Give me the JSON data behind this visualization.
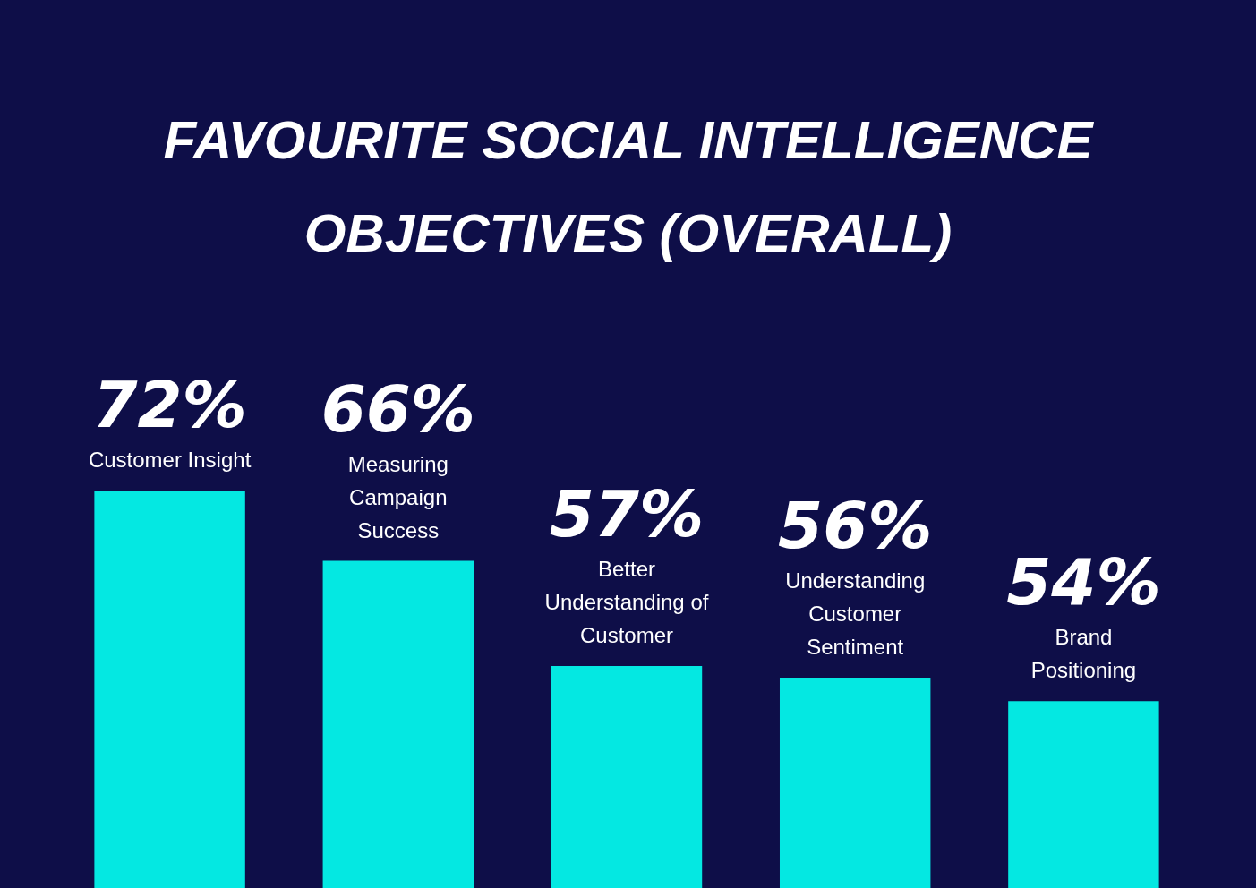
{
  "chart_data": {
    "type": "bar",
    "title": "FAVOURITE SOCIAL INTELLIGENCE OBJECTIVES (OVERALL)",
    "categories": [
      "Customer Insight",
      "Measuring Campaign Success",
      "Better Understanding of Customer",
      "Understanding Customer Sentiment",
      "Brand Positioning"
    ],
    "values": [
      72,
      66,
      57,
      56,
      54
    ],
    "value_labels": [
      "72%",
      "66%",
      "57%",
      "56%",
      "54%"
    ],
    "color": "#04e8e2",
    "ylim": [
      38,
      114
    ],
    "legend": false
  }
}
